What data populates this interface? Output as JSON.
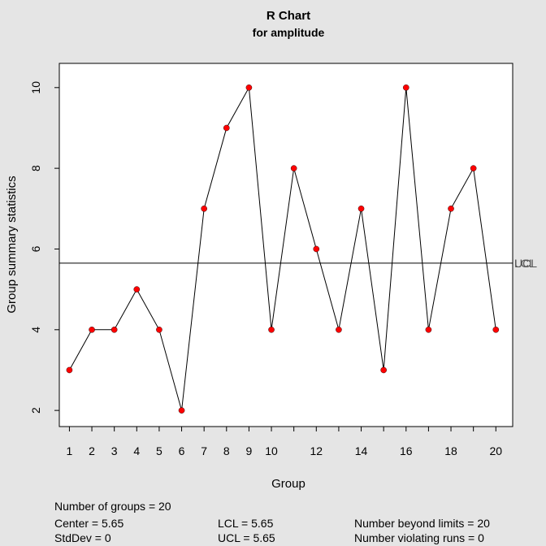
{
  "chart_data": {
    "type": "line",
    "title": "R Chart",
    "subtitle": "for amplitude",
    "xlabel": "Group",
    "ylabel": "Group summary statistics",
    "x": [
      1,
      2,
      3,
      4,
      5,
      6,
      7,
      8,
      9,
      10,
      11,
      12,
      13,
      14,
      15,
      16,
      17,
      18,
      19,
      20
    ],
    "values": [
      3,
      4,
      4,
      5,
      4,
      2,
      7,
      9,
      10,
      4,
      8,
      6,
      4,
      7,
      3,
      10,
      4,
      7,
      8,
      4
    ],
    "xlim": [
      0.55,
      20.75
    ],
    "ylim": [
      1.6,
      10.6
    ],
    "xticks": [
      1,
      2,
      3,
      4,
      5,
      6,
      7,
      8,
      9,
      10,
      12,
      14,
      16,
      18,
      20
    ],
    "xtick_labels": [
      "1",
      "2",
      "3",
      "4",
      "5",
      "6",
      "7",
      "8",
      "9",
      "10",
      "12",
      "14",
      "16",
      "18",
      "20"
    ],
    "yticks": [
      2,
      4,
      6,
      8,
      10
    ],
    "ytick_labels": [
      "2",
      "4",
      "6",
      "8",
      "10"
    ],
    "center": 5.65,
    "limit_line_label": "UCL",
    "limit_line_label_overlap": "LCL",
    "point_color": "#ff0000",
    "line_color": "#000000",
    "background_color": "#e5e5e5",
    "plot_background": "#ffffff"
  },
  "stats": {
    "groups": "Number of groups = 20",
    "center": "Center = 5.65",
    "stddev": "StdDev = 0",
    "lcl": "LCL = 5.65",
    "ucl": "UCL = 5.65",
    "beyond": "Number beyond limits = 20",
    "violating": "Number violating runs = 0"
  }
}
